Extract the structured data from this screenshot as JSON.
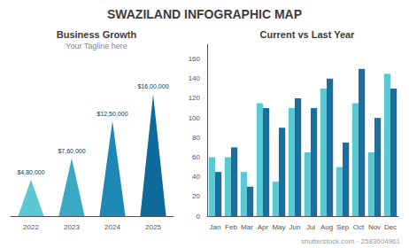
{
  "title": "SWAZILAND INFOGRAPHIC MAP",
  "annotations": [
    "shutterstock.com · 2583604961"
  ],
  "chart_data": [
    {
      "type": "bar",
      "title": "Business Growth",
      "subtitle": "Your Tagline here",
      "categories": [
        "2022",
        "2023",
        "2024",
        "2025"
      ],
      "values": [
        480000,
        760000,
        1250000,
        1600000
      ],
      "value_labels": [
        "$4,80,000",
        "$7,60,000",
        "$12,50,000",
        "$16,00,000"
      ],
      "colors": [
        "#5bc8d4",
        "#3ba8c4",
        "#1e88b4",
        "#0d6a9a"
      ],
      "marker": "triangle",
      "ylim": [
        0,
        2000000
      ],
      "yticks": [
        0,
        500000,
        1000000,
        1500000,
        2000000
      ],
      "data_labels": true,
      "tick_labels": "x",
      "grid": false
    },
    {
      "type": "bar",
      "title": "Current vs Last Year",
      "categories": [
        "Jan",
        "Feb",
        "Mar",
        "Apr",
        "May",
        "Jun",
        "Jul",
        "Aug",
        "Sep",
        "Oct",
        "Nov",
        "Dec"
      ],
      "series": [
        {
          "color": "#5bc8d4",
          "values": [
            60,
            60,
            45,
            115,
            35,
            110,
            65,
            130,
            50,
            115,
            65,
            145
          ]
        },
        {
          "color": "#1a6fa0",
          "values": [
            45,
            70,
            30,
            110,
            90,
            120,
            110,
            140,
            75,
            150,
            100,
            130
          ]
        }
      ],
      "ylim": [
        0,
        175
      ],
      "yticks": [
        0,
        20,
        40,
        60,
        80,
        100,
        120,
        140,
        160
      ],
      "grid": false
    }
  ]
}
